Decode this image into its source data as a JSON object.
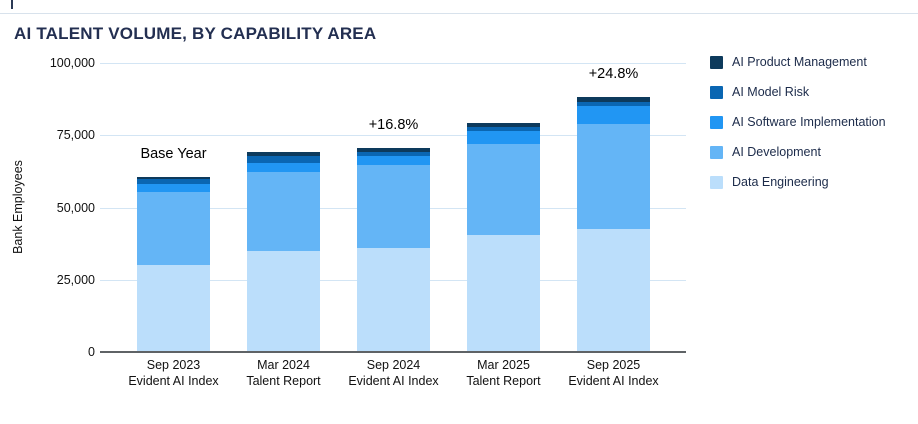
{
  "chart_data": {
    "type": "bar",
    "stacked": true,
    "title": "AI TALENT VOLUME, BY CAPABILITY AREA",
    "ylabel": "Bank Employees",
    "ylim": [
      0,
      100000
    ],
    "grid": true,
    "legend_position": "right",
    "ytick_values": [
      0,
      25000,
      50000,
      75000,
      100000
    ],
    "ytick_labels": [
      "0",
      "25,000",
      "50,000",
      "75,000",
      "100,000"
    ],
    "categories": [
      {
        "line1": "Sep 2023",
        "line2": "Evident AI Index"
      },
      {
        "line1": "Mar 2024",
        "line2": "Talent Report"
      },
      {
        "line1": "Sep 2024",
        "line2": "Evident AI Index"
      },
      {
        "line1": "Mar 2025",
        "line2": "Talent Report"
      },
      {
        "line1": "Sep 2025",
        "line2": "Evident AI Index"
      }
    ],
    "series": [
      {
        "name": "AI Product Management",
        "color": "#0d3a5c",
        "values": [
          700,
          1400,
          1500,
          1500,
          1800
        ]
      },
      {
        "name": "AI Model Risk",
        "color": "#0a66b2",
        "values": [
          1800,
          2500,
          1500,
          1500,
          1400
        ]
      },
      {
        "name": "AI Software Implementation",
        "color": "#2196f3",
        "values": [
          2500,
          2900,
          3000,
          4600,
          6000
        ]
      },
      {
        "name": "AI Development",
        "color": "#64b5f6",
        "values": [
          25500,
          27400,
          28700,
          31300,
          36300
        ]
      },
      {
        "name": "Data Engineering",
        "color": "#bbdefb",
        "values": [
          30000,
          35000,
          36000,
          40500,
          42700
        ]
      }
    ],
    "totals": [
      60500,
      69200,
      70700,
      79400,
      88200
    ],
    "annotations": [
      {
        "text": "Base Year",
        "bar_index": 0
      },
      {
        "text": "+16.8%",
        "bar_index": 2
      },
      {
        "text": "+24.8%",
        "bar_index": 4
      }
    ]
  }
}
